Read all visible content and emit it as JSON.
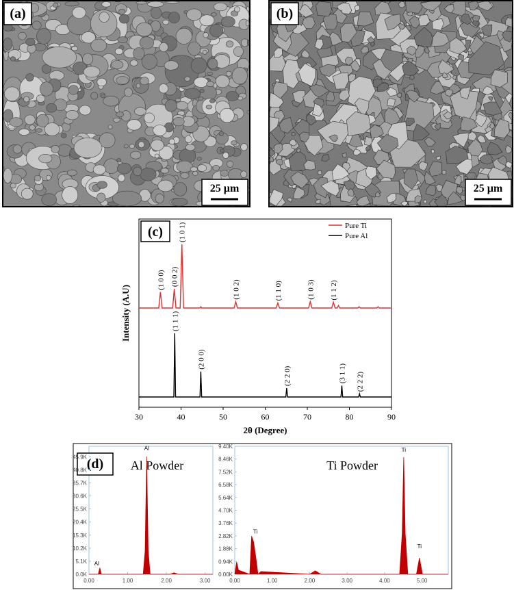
{
  "panels": [
    {
      "label": "(a)",
      "scale_bar": "25 µm"
    },
    {
      "label": "(b)",
      "scale_bar": "25 µm"
    },
    {
      "label": "(c)"
    },
    {
      "label": "(d)"
    }
  ],
  "chart_data": [
    {
      "type": "line",
      "xlabel": "2θ (Degree)",
      "ylabel": "Intensity (A.U)",
      "xlim": [
        30,
        90
      ],
      "xticks": [
        30,
        40,
        50,
        60,
        70,
        80,
        90
      ],
      "ylim": [
        0,
        100
      ],
      "legend": "upper right",
      "series": [
        {
          "name": "Pure Ti",
          "color": "#e03030",
          "x": [
            30,
            34.7,
            35.1,
            35.5,
            38.0,
            38.4,
            38.8,
            39.8,
            40.2,
            40.6,
            44.5,
            44.7,
            44.9,
            52.6,
            53.0,
            53.4,
            62.6,
            63.0,
            63.4,
            70.3,
            70.7,
            71.1,
            75.8,
            76.2,
            76.6,
            77.1,
            77.4,
            77.7,
            82.0,
            82.3,
            82.6,
            86.5,
            86.8,
            87.1,
            90
          ],
          "values": [
            0,
            0,
            25,
            0,
            0,
            30,
            0,
            0,
            100,
            0,
            0,
            2,
            0,
            0,
            10,
            0,
            0,
            8,
            0,
            0,
            10,
            0,
            0,
            9,
            0,
            0,
            4,
            0,
            0,
            2,
            0,
            0,
            2,
            0,
            0
          ],
          "annotations": [
            {
              "text": "(1 0 0)",
              "x": 35.1
            },
            {
              "text": "(0 0 2)",
              "x": 38.4
            },
            {
              "text": "(1 0 1)",
              "x": 40.2
            },
            {
              "text": "(1 0 2)",
              "x": 53.0
            },
            {
              "text": "(1 1 0)",
              "x": 63.0
            },
            {
              "text": "(1 0 3)",
              "x": 70.7
            },
            {
              "text": "(1 1 2)",
              "x": 76.2
            }
          ]
        },
        {
          "name": "Pure Al",
          "color": "#000000",
          "x": [
            30,
            38.3,
            38.5,
            38.7,
            44.5,
            44.7,
            44.9,
            64.9,
            65.1,
            65.3,
            78.0,
            78.2,
            78.4,
            82.2,
            82.4,
            82.6,
            90
          ],
          "values": [
            0,
            0,
            100,
            0,
            0,
            40,
            0,
            0,
            14,
            0,
            0,
            18,
            0,
            0,
            5,
            0,
            0
          ],
          "annotations": [
            {
              "text": "(1 1 1)",
              "x": 38.5
            },
            {
              "text": "(2 0 0)",
              "x": 44.7
            },
            {
              "text": "(2 2 0)",
              "x": 65.1
            },
            {
              "text": "(3 1 1)",
              "x": 78.2
            },
            {
              "text": "(2 2 2)",
              "x": 82.4
            }
          ]
        }
      ]
    },
    {
      "type": "area",
      "title": "Al Powder",
      "xlim": [
        0,
        3.2
      ],
      "ylim": [
        0,
        50000
      ],
      "xticks": [
        {
          "value": 0,
          "label": "0.00"
        },
        {
          "value": 1,
          "label": "1.00"
        },
        {
          "value": 2,
          "label": "2.00"
        },
        {
          "value": 3,
          "label": "3.00"
        }
      ],
      "yticks": [
        {
          "value": 0,
          "label": "0.0K"
        },
        {
          "value": 5100,
          "label": "5.1K"
        },
        {
          "value": 10200,
          "label": "10.2K"
        },
        {
          "value": 15300,
          "label": "15.3K"
        },
        {
          "value": 20400,
          "label": "20.4K"
        },
        {
          "value": 25500,
          "label": "25.5K"
        },
        {
          "value": 30600,
          "label": "30.6K"
        },
        {
          "value": 35700,
          "label": "35.7K"
        },
        {
          "value": 40800,
          "label": "40.8K"
        },
        {
          "value": 45900,
          "label": "45.9K"
        }
      ],
      "series": [
        {
          "color": "#c00000",
          "x": [
            0,
            0.24,
            0.28,
            0.32,
            1.4,
            1.45,
            1.49,
            1.53,
            1.58,
            2.1,
            2.2,
            2.3,
            3.2
          ],
          "values": [
            0,
            0,
            2500,
            0,
            0,
            9000,
            46000,
            9000,
            0,
            0,
            600,
            0,
            0
          ]
        }
      ],
      "annotations": [
        {
          "text": "Al",
          "x": 1.49,
          "y": 48500
        },
        {
          "text": "Al",
          "x": 0.2,
          "y": 3500
        }
      ]
    },
    {
      "type": "area",
      "title": "Ti Powder",
      "xlim": [
        0,
        5.7
      ],
      "ylim": [
        0,
        9400
      ],
      "xticks": [
        {
          "value": 0,
          "label": "0.00"
        },
        {
          "value": 1,
          "label": "1.00"
        },
        {
          "value": 2,
          "label": "2.00"
        },
        {
          "value": 3,
          "label": "3.00"
        },
        {
          "value": 4,
          "label": "4.00"
        },
        {
          "value": 5,
          "label": "5.00"
        }
      ],
      "yticks": [
        {
          "value": 0,
          "label": "0.00K"
        },
        {
          "value": 940,
          "label": "0.94K"
        },
        {
          "value": 1880,
          "label": "1.88K"
        },
        {
          "value": 2820,
          "label": "2.82K"
        },
        {
          "value": 3760,
          "label": "3.76K"
        },
        {
          "value": 4700,
          "label": "4.70K"
        },
        {
          "value": 5640,
          "label": "5.64K"
        },
        {
          "value": 6580,
          "label": "6.58K"
        },
        {
          "value": 7520,
          "label": "7.52K"
        },
        {
          "value": 8460,
          "label": "8.46K"
        },
        {
          "value": 9400,
          "label": "9.40K"
        }
      ],
      "series": [
        {
          "color": "#c00000",
          "x": [
            0,
            0.05,
            0.1,
            0.4,
            0.45,
            0.5,
            0.55,
            0.62,
            0.7,
            2.0,
            2.15,
            2.3,
            4.4,
            4.47,
            4.51,
            4.55,
            4.62,
            4.85,
            4.93,
            5.01,
            5.7
          ],
          "values": [
            0,
            900,
            300,
            0,
            2800,
            2400,
            1500,
            0,
            200,
            0,
            250,
            0,
            0,
            3000,
            8600,
            3000,
            0,
            0,
            1200,
            0,
            0
          ]
        }
      ],
      "annotations": [
        {
          "text": "Ti",
          "x": 0.55,
          "y": 3000
        },
        {
          "text": "Ti",
          "x": 4.51,
          "y": 9000
        },
        {
          "text": "Ti",
          "x": 4.93,
          "y": 1900
        }
      ]
    }
  ]
}
